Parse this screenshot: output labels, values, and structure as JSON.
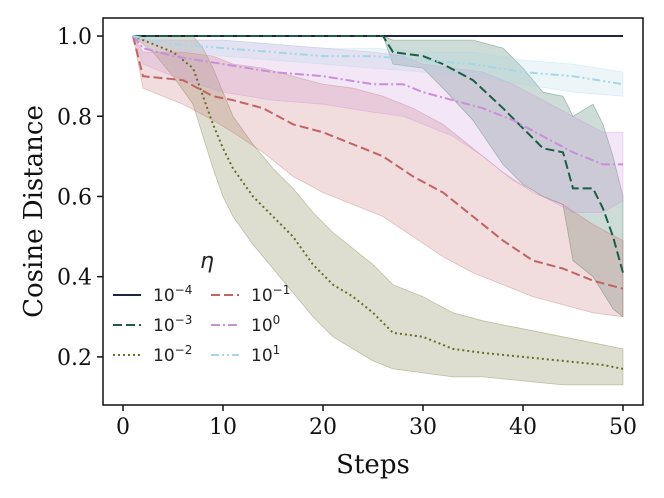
{
  "chart_data": {
    "type": "line",
    "xlabel": "Steps",
    "ylabel": "Cosine Distance",
    "xlim": [
      -2,
      52
    ],
    "ylim": [
      0.08,
      1.045
    ],
    "xticks": [
      0,
      10,
      20,
      30,
      40,
      50
    ],
    "xtick_labels": [
      "0",
      "10",
      "20",
      "30",
      "40",
      "50"
    ],
    "yticks": [
      0.2,
      0.4,
      0.6,
      0.8,
      1.0
    ],
    "ytick_labels": [
      "0.2",
      "0.4",
      "0.6",
      "0.8",
      "1.0"
    ],
    "legend": {
      "title": "η",
      "placement": "lower-left",
      "ncol": 2
    },
    "series": [
      {
        "name": "10^-4",
        "base": "10",
        "exp": "−4",
        "color": "#1f2540",
        "dash": "solid",
        "x": [
          1,
          50
        ],
        "y": [
          1.0,
          1.0
        ],
        "lower": [
          1.0,
          1.0
        ],
        "upper": [
          1.0,
          1.0
        ]
      },
      {
        "name": "10^-3",
        "base": "10",
        "exp": "−3",
        "color": "#1b5e45",
        "dash": "dashed",
        "x": [
          1,
          26,
          27,
          30,
          32,
          35,
          38,
          40,
          42,
          44,
          45,
          47,
          48,
          49,
          50
        ],
        "y": [
          1.0,
          1.0,
          0.96,
          0.95,
          0.93,
          0.89,
          0.82,
          0.77,
          0.72,
          0.71,
          0.62,
          0.62,
          0.57,
          0.5,
          0.41
        ],
        "lower": [
          1.0,
          1.0,
          0.93,
          0.92,
          0.87,
          0.79,
          0.68,
          0.63,
          0.6,
          0.58,
          0.44,
          0.4,
          0.36,
          0.32,
          0.3
        ],
        "upper": [
          1.0,
          1.0,
          0.99,
          0.99,
          0.99,
          0.99,
          0.97,
          0.92,
          0.86,
          0.85,
          0.8,
          0.83,
          0.78,
          0.7,
          0.6
        ]
      },
      {
        "name": "10^-2",
        "base": "10",
        "exp": "−2",
        "color": "#6b6b2a",
        "dash": "dotted",
        "x": [
          1,
          3,
          5,
          7,
          8,
          9,
          10,
          11,
          13,
          15,
          17,
          19,
          21,
          23,
          25,
          27,
          30,
          33,
          36,
          40,
          44,
          48,
          50
        ],
        "y": [
          1.0,
          0.98,
          0.96,
          0.92,
          0.85,
          0.78,
          0.72,
          0.67,
          0.6,
          0.55,
          0.5,
          0.43,
          0.38,
          0.35,
          0.31,
          0.26,
          0.25,
          0.22,
          0.21,
          0.2,
          0.19,
          0.18,
          0.17
        ],
        "lower": [
          1.0,
          0.96,
          0.9,
          0.83,
          0.75,
          0.67,
          0.6,
          0.55,
          0.48,
          0.42,
          0.36,
          0.3,
          0.25,
          0.22,
          0.19,
          0.17,
          0.16,
          0.15,
          0.15,
          0.14,
          0.13,
          0.13,
          0.13
        ],
        "upper": [
          1.0,
          1.0,
          1.0,
          1.0,
          0.97,
          0.92,
          0.86,
          0.8,
          0.73,
          0.67,
          0.62,
          0.56,
          0.51,
          0.47,
          0.43,
          0.38,
          0.35,
          0.31,
          0.29,
          0.27,
          0.25,
          0.23,
          0.22
        ]
      },
      {
        "name": "10^-1",
        "base": "10",
        "exp": "−1",
        "color": "#c06464",
        "dash": "dashed",
        "x": [
          1,
          2,
          6,
          9,
          11,
          14,
          17,
          20,
          23,
          26,
          29,
          32,
          35,
          38,
          41,
          44,
          47,
          50
        ],
        "y": [
          1.0,
          0.9,
          0.89,
          0.85,
          0.84,
          0.82,
          0.78,
          0.76,
          0.73,
          0.7,
          0.65,
          0.61,
          0.55,
          0.49,
          0.44,
          0.42,
          0.39,
          0.37
        ],
        "lower": [
          1.0,
          0.87,
          0.83,
          0.79,
          0.76,
          0.71,
          0.65,
          0.61,
          0.58,
          0.55,
          0.5,
          0.45,
          0.41,
          0.38,
          0.35,
          0.33,
          0.31,
          0.3
        ],
        "upper": [
          1.0,
          0.96,
          0.96,
          0.95,
          0.93,
          0.92,
          0.9,
          0.88,
          0.87,
          0.85,
          0.82,
          0.78,
          0.72,
          0.66,
          0.61,
          0.58,
          0.53,
          0.49
        ]
      },
      {
        "name": "10^0",
        "base": "10",
        "exp": "0",
        "color": "#c98fd8",
        "dash": "dashdot",
        "x": [
          1,
          2,
          5,
          10,
          15,
          20,
          25,
          28,
          30,
          33,
          36,
          39,
          42,
          45,
          48,
          50
        ],
        "y": [
          1.0,
          0.97,
          0.95,
          0.93,
          0.91,
          0.9,
          0.88,
          0.88,
          0.86,
          0.84,
          0.82,
          0.79,
          0.75,
          0.71,
          0.68,
          0.68
        ],
        "lower": [
          1.0,
          0.93,
          0.9,
          0.86,
          0.84,
          0.83,
          0.81,
          0.8,
          0.78,
          0.75,
          0.7,
          0.64,
          0.6,
          0.56,
          0.56,
          0.59
        ],
        "upper": [
          1.0,
          0.99,
          0.99,
          0.99,
          0.98,
          0.97,
          0.96,
          0.95,
          0.93,
          0.92,
          0.91,
          0.88,
          0.84,
          0.8,
          0.76,
          0.76
        ]
      },
      {
        "name": "10^1",
        "base": "10",
        "exp": "1",
        "color": "#a9d6e4",
        "dash": "dashdotdot",
        "x": [
          1,
          5,
          10,
          15,
          20,
          25,
          30,
          35,
          40,
          45,
          50
        ],
        "y": [
          1.0,
          0.98,
          0.97,
          0.96,
          0.95,
          0.95,
          0.94,
          0.93,
          0.91,
          0.9,
          0.88
        ],
        "lower": [
          1.0,
          0.97,
          0.95,
          0.94,
          0.93,
          0.92,
          0.91,
          0.9,
          0.88,
          0.86,
          0.85
        ],
        "upper": [
          1.0,
          0.99,
          0.99,
          0.98,
          0.97,
          0.97,
          0.96,
          0.96,
          0.94,
          0.93,
          0.91
        ]
      }
    ]
  }
}
